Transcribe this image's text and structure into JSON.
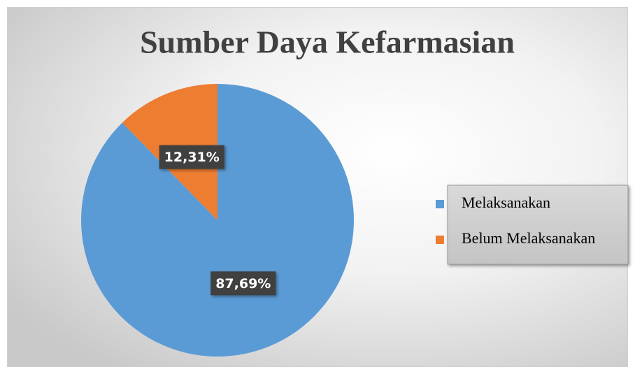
{
  "chart_data": {
    "type": "pie",
    "title": "Sumber Daya Kefarmasian",
    "categories": [
      "Melaksanakan",
      "Belum Melaksanakan"
    ],
    "values": [
      87.69,
      12.31
    ],
    "value_labels": [
      "87,69%",
      "12,31%"
    ],
    "colors": [
      "#5b9bd5",
      "#ed7d31"
    ],
    "legend": "right"
  }
}
